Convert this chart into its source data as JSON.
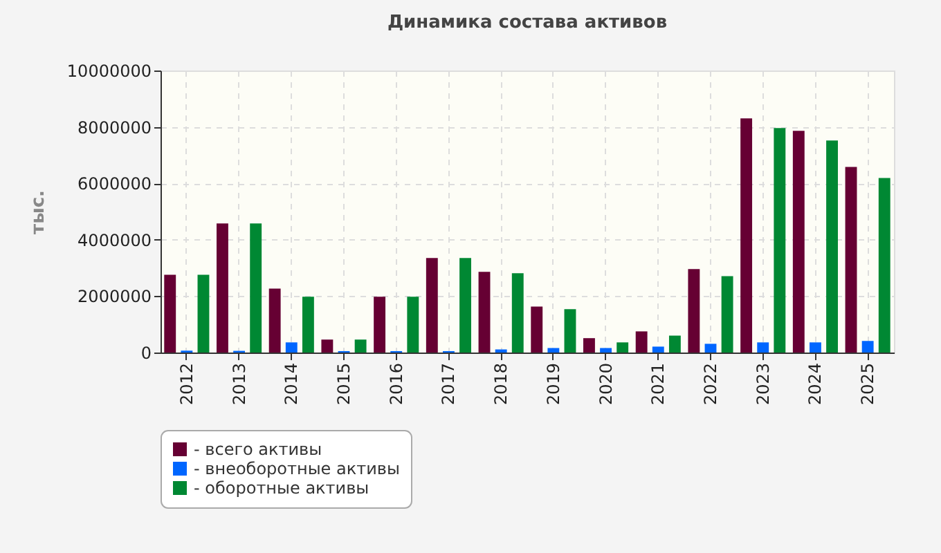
{
  "chart_data": {
    "type": "bar",
    "title": "Динамика состава активов",
    "ylabel": "тыс.",
    "categories": [
      "2012",
      "2013",
      "2014",
      "2015",
      "2016",
      "2017",
      "2018",
      "2019",
      "2020",
      "2021",
      "2022",
      "2023",
      "2024",
      "2025"
    ],
    "series": [
      {
        "name": "- всего активы",
        "color": "#660033",
        "values": [
          2760000,
          4580000,
          2270000,
          460000,
          1980000,
          3350000,
          2860000,
          1630000,
          510000,
          750000,
          2960000,
          8300000,
          7860000,
          6580000
        ]
      },
      {
        "name": "- внеоборотные активы",
        "color": "#0066ff",
        "values": [
          70000,
          60000,
          360000,
          50000,
          50000,
          50000,
          110000,
          160000,
          160000,
          210000,
          310000,
          360000,
          360000,
          410000
        ]
      },
      {
        "name": "- оборотные активы",
        "color": "#008833",
        "values": [
          2760000,
          4580000,
          1980000,
          460000,
          1980000,
          3350000,
          2810000,
          1540000,
          360000,
          600000,
          2710000,
          7960000,
          7520000,
          6190000
        ]
      }
    ],
    "ylim": [
      0,
      10000000
    ],
    "yticks": [
      0,
      2000000,
      4000000,
      6000000,
      8000000,
      10000000
    ],
    "grid": true,
    "legend": "bottom"
  }
}
